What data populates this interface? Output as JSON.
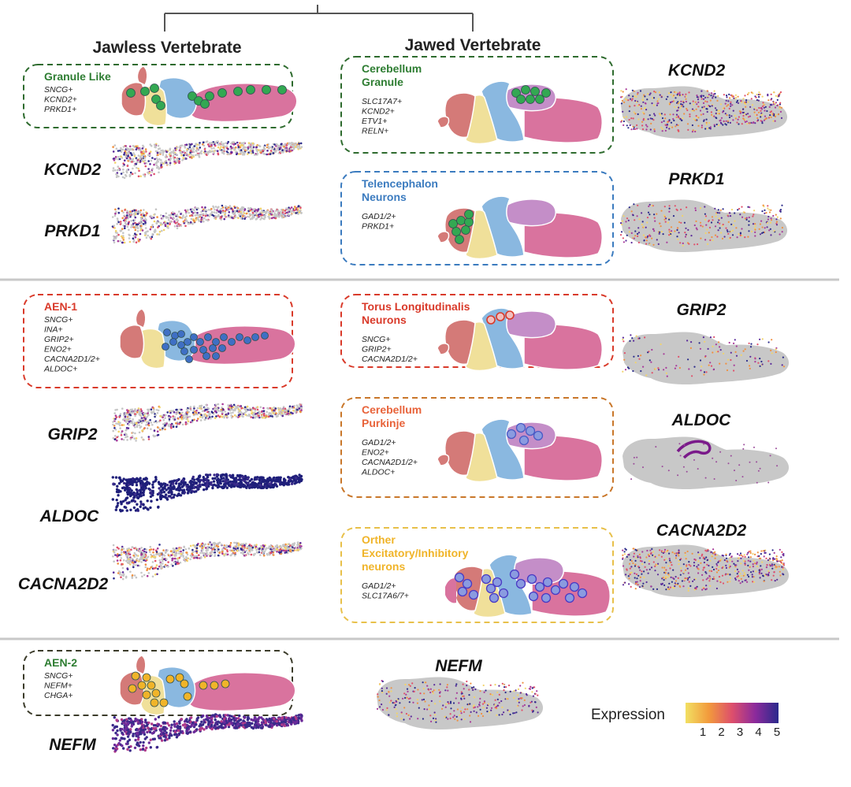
{
  "headers": {
    "jawless": "Jawless Vertebrate",
    "jawed": "Jawed Vertebrate"
  },
  "legend": {
    "title": "Expression",
    "ticks": [
      "1",
      "2",
      "3",
      "4",
      "5"
    ],
    "colors": [
      "#f2e063",
      "#f29a3c",
      "#dd4f6c",
      "#8c2a9c",
      "#2a2a8c"
    ]
  },
  "jawless_boxes": [
    {
      "title": "Granule Like",
      "title_color": "#2e7d32",
      "border_color": "#2e6b2e",
      "markers": [
        "SNCG+",
        "KCND2+",
        "PRKD1+"
      ]
    },
    {
      "title": "AEN-1",
      "title_color": "#d93a2a",
      "border_color": "#d93a2a",
      "markers": [
        "SNCG+",
        "INA+",
        "GRIP2+",
        "ENO2+",
        "CACNA2D1/2+",
        "ALDOC+"
      ]
    },
    {
      "title": "AEN-2",
      "title_color": "#2e7d32",
      "border_color": "#3b3b2a",
      "markers": [
        "SNCG+",
        "NEFM+",
        "CHGA+"
      ]
    }
  ],
  "jawed_boxes": [
    {
      "title": [
        "Cerebellum",
        "Granule"
      ],
      "title_color": "#2e7d32",
      "border_color": "#2e6b2e",
      "markers": [
        "SLC17A7+",
        "KCND2+",
        "ETV1+",
        "RELN+"
      ]
    },
    {
      "title": [
        "Telencephalon",
        "Neurons"
      ],
      "title_color": "#3b7bbf",
      "border_color": "#3b7bbf",
      "markers": [
        "GAD1/2+",
        "PRKD1+"
      ]
    },
    {
      "title": [
        "Torus Longitudinalis",
        "Neurons"
      ],
      "title_color": "#d93a2a",
      "border_color": "#d93a2a",
      "markers": [
        "SNCG+",
        "GRIP2+",
        "CACNA2D1/2+"
      ]
    },
    {
      "title": [
        "Cerebellum",
        " Purkinje"
      ],
      "title_color": "#e8633a",
      "border_color": "#c9772a",
      "markers": [
        "GAD1/2+",
        "ENO2+",
        "CACNA2D1/2+",
        "ALDOC+"
      ]
    },
    {
      "title": [
        "Orther",
        "Excitatory/Inhibitory",
        "neurons"
      ],
      "title_color": "#f0b429",
      "border_color": "#e8c04a",
      "markers": [
        "GAD1/2+",
        "SLC17A6/7+"
      ]
    }
  ],
  "jawless_genes": [
    "KCND2",
    "PRKD1",
    "GRIP2",
    "ALDOC",
    "CACNA2D2",
    "NEFM"
  ],
  "jawed_genes": [
    "KCND2",
    "PRKD1",
    "GRIP2",
    "ALDOC",
    "CACNA2D2",
    "NEFM"
  ],
  "colors": {
    "telencephalon": "#d47a78",
    "diencephalon": "#f0e09a",
    "midbrain": "#8ab8e0",
    "cerebellum": "#c48ec8",
    "hindbrain": "#d9739e",
    "granule_dot": "#33a852",
    "aen1_dot": "#3f6fc4",
    "aen2_dot": "#f0b429",
    "purkinje_dot": "#8a9be0",
    "zebrafish_fill": "#c8c8c8"
  }
}
